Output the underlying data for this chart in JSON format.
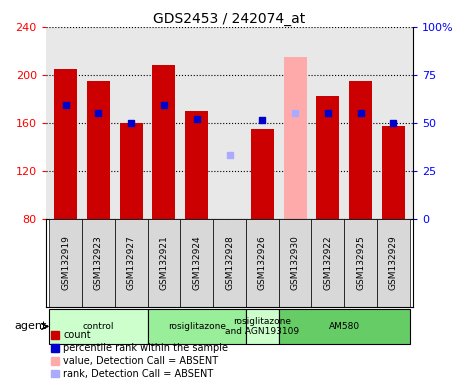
{
  "title": "GDS2453 / 242074_at",
  "samples": [
    "GSM132919",
    "GSM132923",
    "GSM132927",
    "GSM132921",
    "GSM132924",
    "GSM132928",
    "GSM132926",
    "GSM132930",
    "GSM132922",
    "GSM132925",
    "GSM132929"
  ],
  "count_values": [
    205,
    195,
    160,
    208,
    170,
    82,
    155,
    null,
    182,
    195,
    157
  ],
  "percentile_values": [
    175,
    168,
    160,
    175,
    163,
    null,
    162,
    null,
    168,
    168,
    160
  ],
  "absent_value_bar": [
    null,
    null,
    null,
    null,
    null,
    null,
    null,
    215,
    null,
    null,
    null
  ],
  "absent_rank_dot_pos": [
    null,
    null,
    null,
    null,
    null,
    133,
    null,
    168,
    null,
    null,
    null
  ],
  "detection_absent": [
    false,
    false,
    false,
    false,
    false,
    true,
    false,
    true,
    false,
    false,
    false
  ],
  "groups": [
    {
      "label": "control",
      "start": 0,
      "end": 2,
      "color": "#ccffcc"
    },
    {
      "label": "rosiglitazone",
      "start": 3,
      "end": 5,
      "color": "#99ee99"
    },
    {
      "label": "rosiglitazone\nand AGN193109",
      "start": 6,
      "end": 6,
      "color": "#ccffcc"
    },
    {
      "label": "AM580",
      "start": 7,
      "end": 10,
      "color": "#66cc66"
    }
  ],
  "ylim": [
    80,
    240
  ],
  "yticks": [
    80,
    120,
    160,
    200,
    240
  ],
  "right_yticks": [
    0,
    25,
    50,
    75,
    100
  ],
  "bar_color": "#cc0000",
  "percentile_color": "#0000cc",
  "absent_bar_color": "#ffaaaa",
  "absent_dot_color": "#aaaaff",
  "sample_box_color": "#d0d0d0",
  "legend_items": [
    {
      "color": "#cc0000",
      "label": "count"
    },
    {
      "color": "#0000cc",
      "label": "percentile rank within the sample"
    },
    {
      "color": "#ffaaaa",
      "label": "value, Detection Call = ABSENT"
    },
    {
      "color": "#aaaaff",
      "label": "rank, Detection Call = ABSENT"
    }
  ]
}
